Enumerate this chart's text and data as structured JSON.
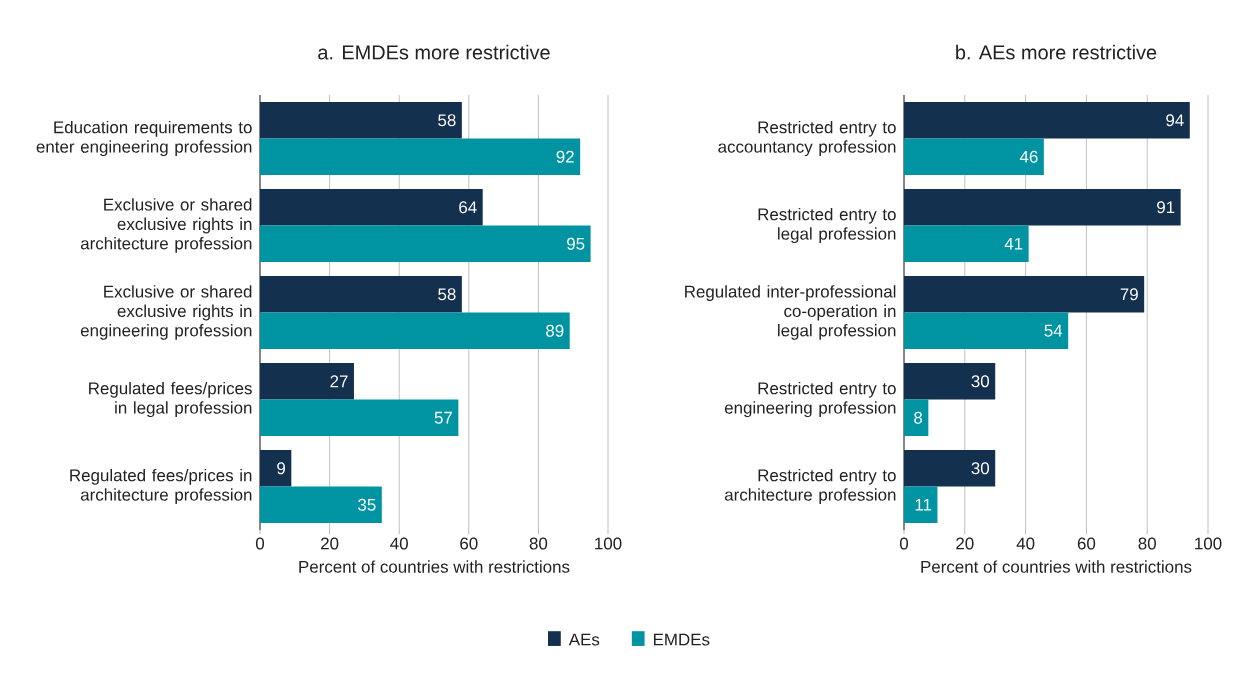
{
  "chart_data": [
    {
      "type": "bar",
      "orientation": "horizontal",
      "title": "a. EMDEs more restrictive",
      "xlabel": "Percent of countries with restrictions",
      "categories": [
        "Education requirements to enter engineering profession",
        "Exclusive or shared exclusive rights in architecture profession",
        "Exclusive or shared exclusive rights in engineering profession",
        "Regulated fees/prices in legal profession",
        "Regulated fees/prices in architecture profession"
      ],
      "series": [
        {
          "name": "AEs",
          "color": "#14304f",
          "values": [
            58,
            64,
            58,
            27,
            9
          ]
        },
        {
          "name": "EMDEs",
          "color": "#0094a3",
          "values": [
            92,
            95,
            89,
            57,
            35
          ]
        }
      ],
      "xlim": [
        0,
        100
      ],
      "xticks": [
        0,
        20,
        40,
        60,
        80,
        100
      ],
      "grid": "x",
      "data_labels": true,
      "legend": "bottom"
    },
    {
      "type": "bar",
      "orientation": "horizontal",
      "title": "b. AEs more restrictive",
      "xlabel": "Percent of countries with restrictions",
      "categories": [
        "Restricted entry to accountancy profession",
        "Restricted entry to legal profession",
        "Regulated inter-professional co-operation in legal profession",
        "Restricted entry to engineering profession",
        "Restricted entry to architecture profession"
      ],
      "series": [
        {
          "color": "#14304f",
          "values": [
            94,
            91,
            79,
            30,
            30
          ]
        },
        {
          "color": "#0094a3",
          "values": [
            46,
            41,
            54,
            8,
            11
          ]
        }
      ],
      "xlim": [
        0,
        100
      ],
      "xticks": [
        0,
        20,
        40,
        60,
        80,
        100
      ],
      "grid": "x",
      "data_labels": true
    }
  ]
}
